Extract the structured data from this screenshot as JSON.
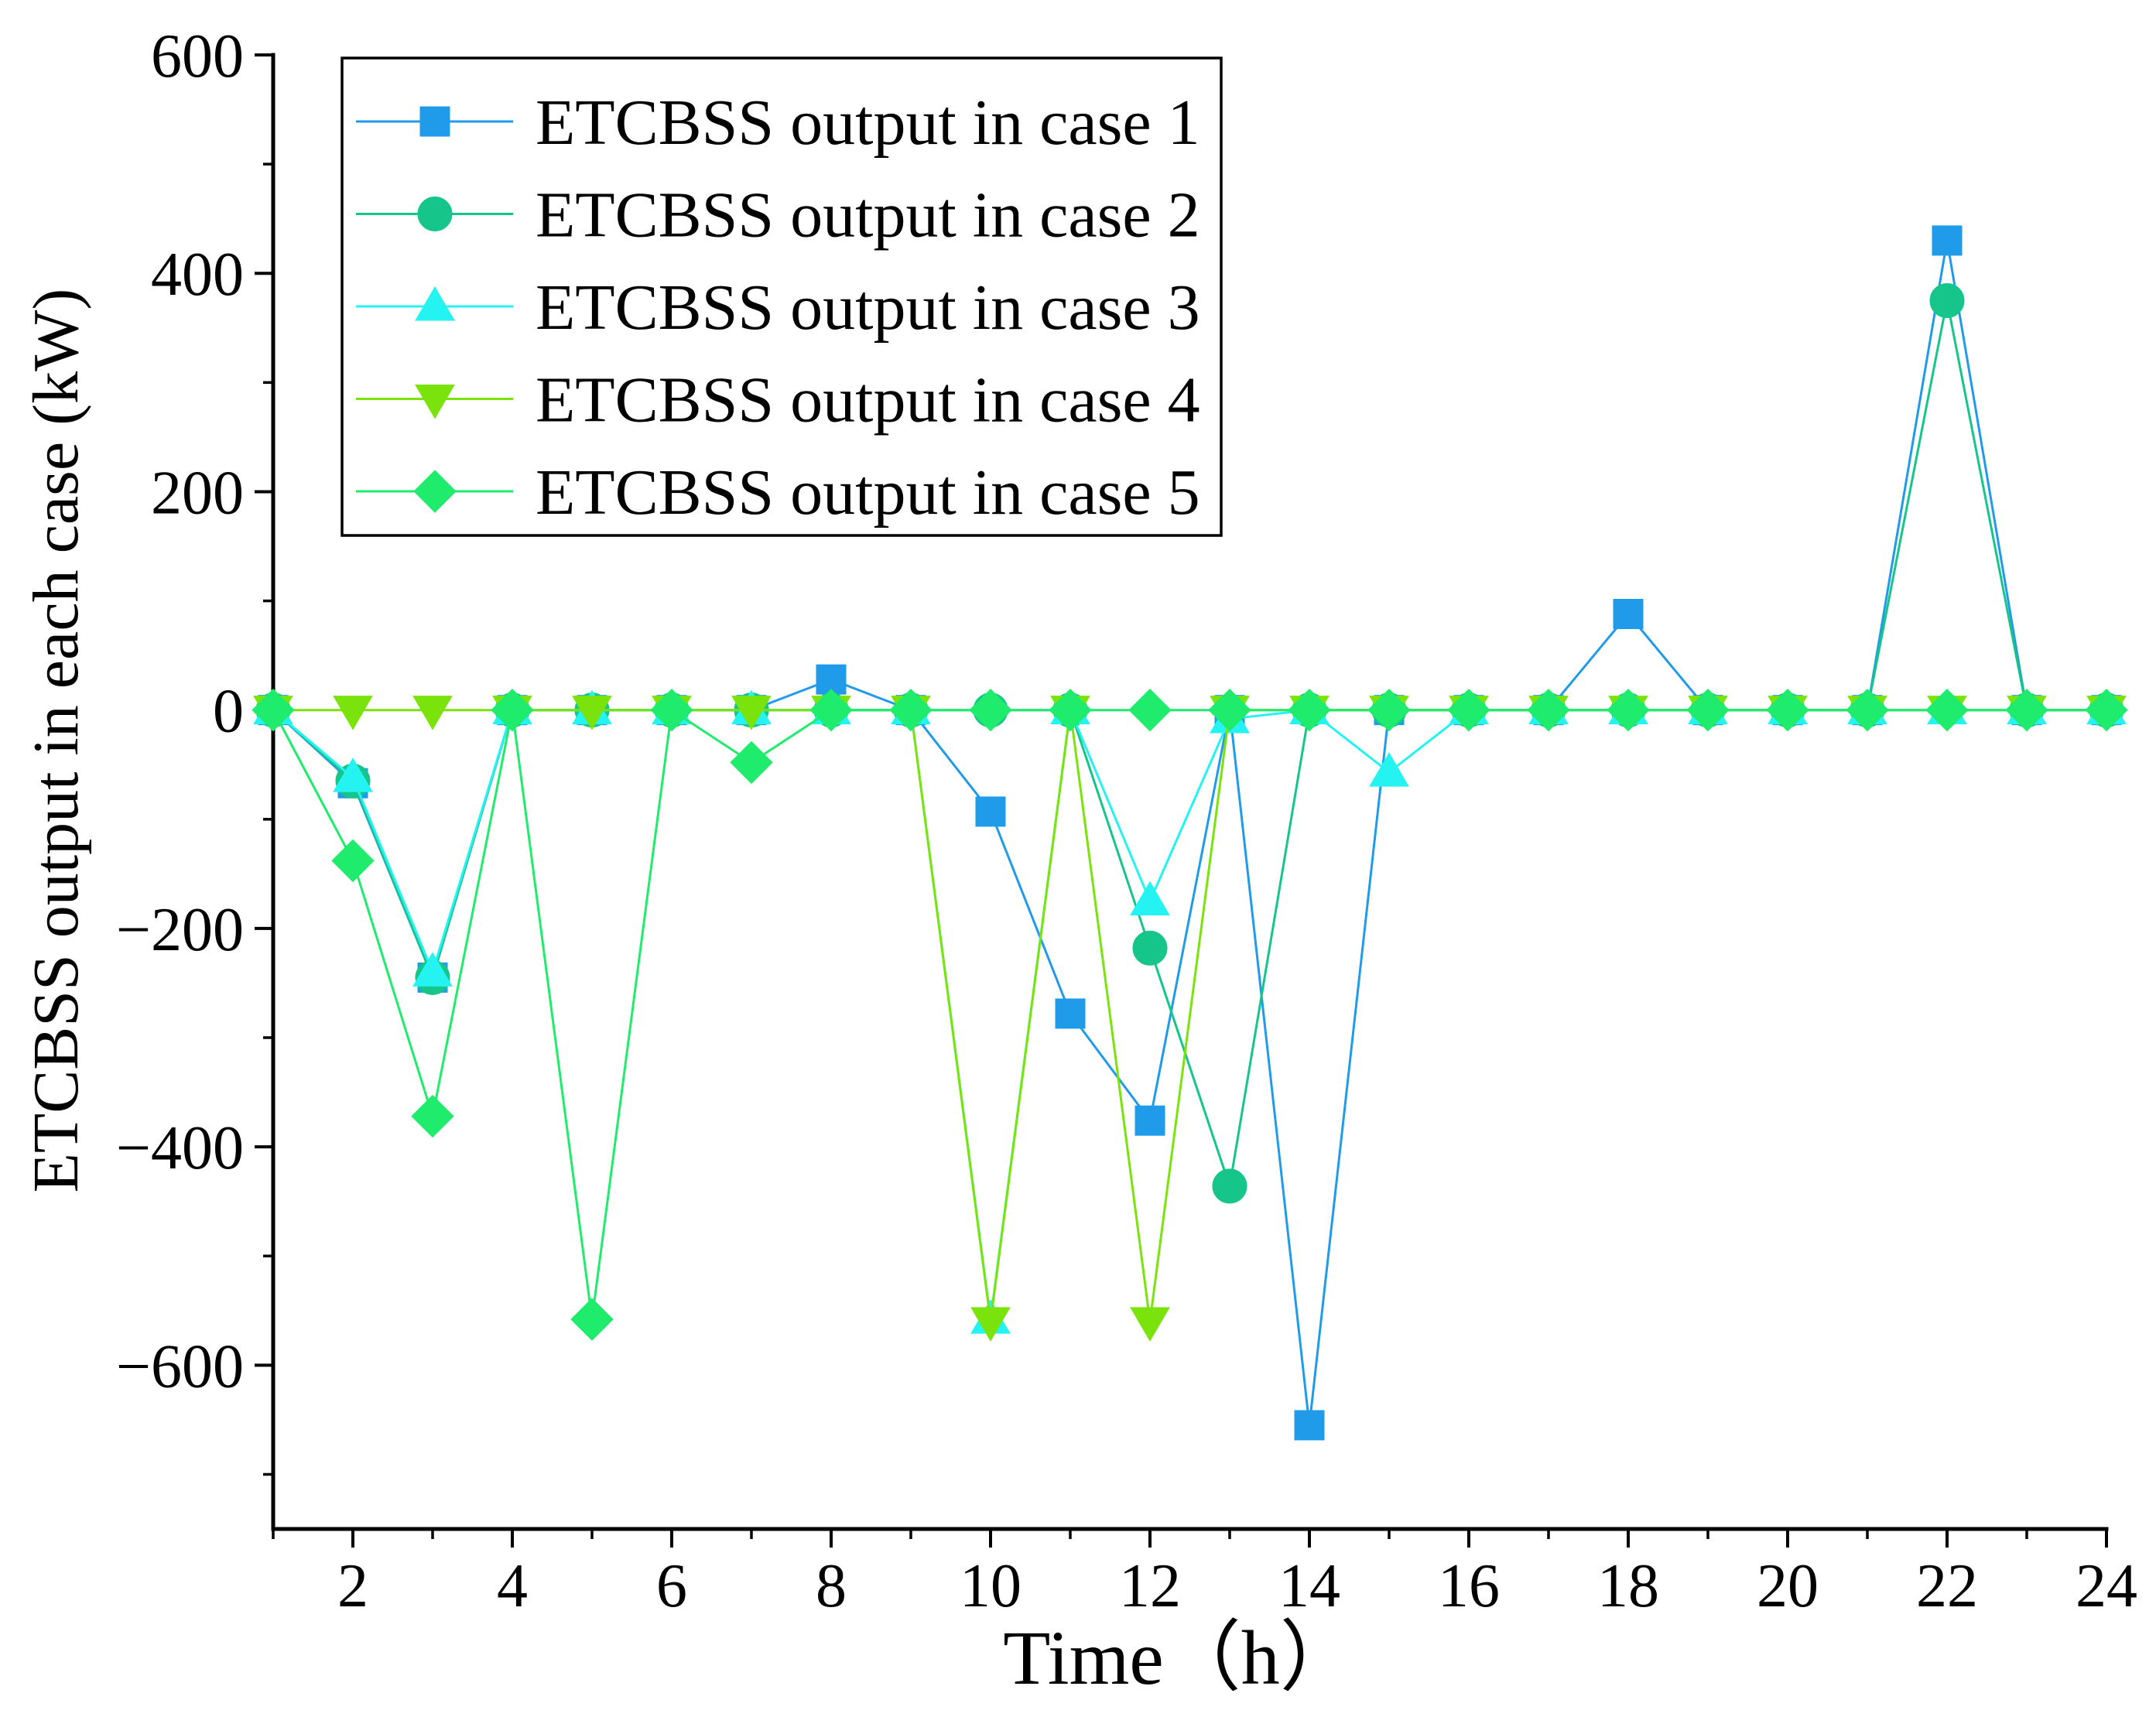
{
  "chart_data": {
    "type": "line",
    "title": "",
    "xlabel": "Time（h）",
    "ylabel": "ETCBSS output in each case (kW)",
    "xlim": [
      1,
      24
    ],
    "ylim": [
      -750,
      600
    ],
    "x": [
      1,
      2,
      3,
      4,
      5,
      6,
      7,
      8,
      9,
      10,
      11,
      12,
      13,
      14,
      15,
      16,
      17,
      18,
      19,
      20,
      21,
      22,
      23,
      24
    ],
    "xticks": [
      2,
      4,
      6,
      8,
      10,
      12,
      14,
      16,
      18,
      20,
      22,
      24
    ],
    "xtick_labels": [
      "2",
      "4",
      "6",
      "8",
      "10",
      "12",
      "14",
      "16",
      "18",
      "20",
      "22",
      "24"
    ],
    "yticks": [
      600,
      400,
      200,
      0,
      -200,
      -400,
      -600
    ],
    "ytick_labels": [
      "600",
      "400",
      "200",
      "0",
      "−200",
      "−400",
      "−600"
    ],
    "grid": false,
    "legend_position": "top-left",
    "axis_color": "#000000",
    "series": [
      {
        "name": "ETCBSS output in case 1",
        "marker": "square",
        "color": "#1f9be9",
        "values": [
          0,
          -67,
          -245,
          0,
          0,
          0,
          0,
          28,
          0,
          -93,
          -278,
          -376,
          0,
          -655,
          0,
          0,
          0,
          88,
          0,
          0,
          0,
          430,
          0,
          0
        ]
      },
      {
        "name": "ETCBSS output in case 2",
        "marker": "circle",
        "color": "#16c58a",
        "values": [
          0,
          -65,
          -245,
          0,
          0,
          0,
          0,
          0,
          0,
          0,
          0,
          -218,
          -436,
          0,
          0,
          0,
          0,
          0,
          0,
          0,
          0,
          375,
          0,
          0
        ]
      },
      {
        "name": "ETCBSS output in case 3",
        "marker": "triangle",
        "color": "#24f3f1",
        "values": [
          0,
          -62,
          -240,
          0,
          0,
          0,
          0,
          0,
          0,
          -558,
          0,
          -175,
          -8,
          0,
          -57,
          0,
          0,
          0,
          0,
          0,
          0,
          0,
          0,
          0
        ]
      },
      {
        "name": "ETCBSS output in case 4",
        "marker": "triangle-down",
        "color": "#7ae30c",
        "values": [
          0,
          0,
          0,
          0,
          0,
          0,
          0,
          0,
          0,
          -560,
          0,
          -560,
          0,
          0,
          0,
          0,
          0,
          0,
          0,
          0,
          0,
          0,
          0,
          0
        ]
      },
      {
        "name": "ETCBSS output in case 5",
        "marker": "diamond",
        "color": "#1feb6c",
        "values": [
          0,
          -138,
          -372,
          0,
          -558,
          0,
          -48,
          0,
          0,
          0,
          0,
          0,
          0,
          0,
          0,
          0,
          0,
          0,
          0,
          0,
          0,
          0,
          0,
          0
        ]
      }
    ]
  }
}
